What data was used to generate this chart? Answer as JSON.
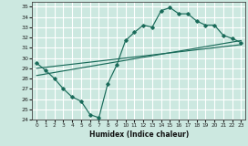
{
  "xlabel": "Humidex (Indice chaleur)",
  "bg_color": "#cce8e0",
  "grid_color": "#ffffff",
  "line_color": "#1a6b5a",
  "ylim": [
    24,
    35.5
  ],
  "xlim": [
    -0.5,
    23.5
  ],
  "yticks": [
    24,
    25,
    26,
    27,
    28,
    29,
    30,
    31,
    32,
    33,
    34,
    35
  ],
  "xticks": [
    0,
    1,
    2,
    3,
    4,
    5,
    6,
    7,
    8,
    9,
    10,
    11,
    12,
    13,
    14,
    15,
    16,
    17,
    18,
    19,
    20,
    21,
    22,
    23
  ],
  "line1_x": [
    0,
    1,
    2,
    3,
    4,
    5,
    6,
    7,
    8,
    9,
    10,
    11,
    12,
    13,
    14,
    15,
    16,
    17,
    18,
    19,
    20,
    21,
    22,
    23
  ],
  "line1_y": [
    29.5,
    28.8,
    28.0,
    27.0,
    26.2,
    25.8,
    24.5,
    24.2,
    27.5,
    29.3,
    31.7,
    32.5,
    33.2,
    33.0,
    34.6,
    34.9,
    34.3,
    34.3,
    33.6,
    33.2,
    33.2,
    32.2,
    31.9,
    31.5
  ],
  "line2_x": [
    0,
    23
  ],
  "line2_y": [
    29.0,
    31.3
  ],
  "line3_x": [
    0,
    23
  ],
  "line3_y": [
    28.3,
    31.7
  ]
}
